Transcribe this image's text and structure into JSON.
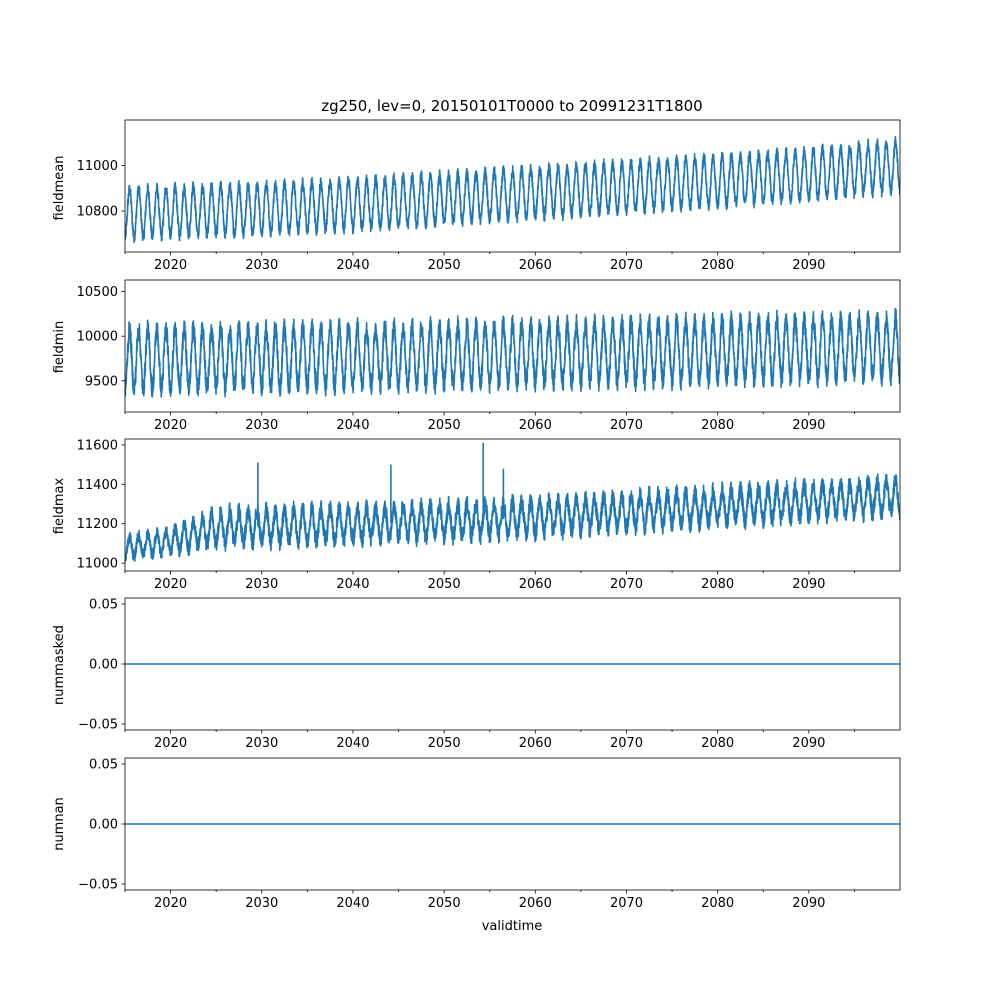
{
  "figure": {
    "title": "zg250, lev=0, 20150101T0000 to 20991231T1800",
    "xlabel": "validtime"
  },
  "colors": {
    "series": "#1f77b4",
    "axes": "#000000",
    "background": "#ffffff"
  },
  "chart_data": [
    {
      "type": "line",
      "ylabel": "fieldmean",
      "xlim": [
        "2015-01-01",
        "2099-12-31"
      ],
      "ylim": [
        10620,
        11200
      ],
      "x_tick_labels": [
        "2020",
        "2030",
        "2040",
        "2050",
        "2060",
        "2070",
        "2080",
        "2090"
      ],
      "y_ticks": [
        10800,
        11000
      ],
      "y_tick_labels": [
        "10800",
        "11000"
      ],
      "series": [
        {
          "x": [
            "2015-01-01",
            "2030-01-01",
            "2045-01-01",
            "2060-01-01",
            "2075-01-01",
            "2090-01-01",
            "2099-12-31"
          ],
          "center": [
            10790,
            10810,
            10840,
            10880,
            10920,
            10960,
            11000
          ],
          "seasonal_amplitude": [
            105,
            105,
            105,
            105,
            105,
            105,
            105
          ],
          "noise_amplitude": [
            25,
            25,
            25,
            25,
            25,
            25,
            25
          ]
        }
      ],
      "grid": false
    },
    {
      "type": "line",
      "ylabel": "fieldmin",
      "xlim": [
        "2015-01-01",
        "2099-12-31"
      ],
      "ylim": [
        9150,
        10630
      ],
      "x_tick_labels": [
        "2020",
        "2030",
        "2040",
        "2050",
        "2060",
        "2070",
        "2080",
        "2090"
      ],
      "y_ticks": [
        9500,
        10000,
        10500
      ],
      "y_tick_labels": [
        "9500",
        "10000",
        "10500"
      ],
      "series": [
        {
          "x": [
            "2015-01-01",
            "2030-01-01",
            "2045-01-01",
            "2060-01-01",
            "2075-01-01",
            "2090-01-01",
            "2099-12-31"
          ],
          "center": [
            9740,
            9760,
            9780,
            9800,
            9830,
            9860,
            9880
          ],
          "seasonal_amplitude": [
            330,
            330,
            330,
            330,
            330,
            330,
            330
          ],
          "noise_amplitude": [
            110,
            110,
            110,
            110,
            110,
            110,
            110
          ]
        }
      ],
      "grid": false
    },
    {
      "type": "line",
      "ylabel": "fieldmax",
      "xlim": [
        "2015-01-01",
        "2099-12-31"
      ],
      "ylim": [
        10960,
        11630
      ],
      "x_tick_labels": [
        "2020",
        "2030",
        "2040",
        "2050",
        "2060",
        "2070",
        "2080",
        "2090"
      ],
      "y_ticks": [
        11000,
        11200,
        11400,
        11600
      ],
      "y_tick_labels": [
        "11000",
        "11200",
        "11400",
        "11600"
      ],
      "series": [
        {
          "x": [
            "2015-01-01",
            "2020-01-01",
            "2025-01-01",
            "2040-01-01",
            "2055-01-01",
            "2070-01-01",
            "2085-01-01",
            "2099-12-31"
          ],
          "center": [
            11080,
            11110,
            11180,
            11200,
            11220,
            11260,
            11300,
            11340
          ],
          "seasonal_amplitude": [
            50,
            55,
            80,
            80,
            80,
            80,
            80,
            80
          ],
          "noise_amplitude": [
            30,
            30,
            45,
            45,
            45,
            45,
            45,
            45
          ]
        }
      ],
      "spikes": [
        {
          "x": "2029-08-01",
          "y": 11510
        },
        {
          "x": "2044-03-01",
          "y": 11500
        },
        {
          "x": "2054-04-15",
          "y": 11610
        },
        {
          "x": "2056-07-01",
          "y": 11480
        }
      ],
      "grid": false
    },
    {
      "type": "line",
      "ylabel": "nummasked",
      "xlim": [
        "2015-01-01",
        "2099-12-31"
      ],
      "ylim": [
        -0.055,
        0.055
      ],
      "x_tick_labels": [
        "2020",
        "2030",
        "2040",
        "2050",
        "2060",
        "2070",
        "2080",
        "2090"
      ],
      "y_ticks": [
        -0.05,
        0.0,
        0.05
      ],
      "y_tick_labels": [
        "−0.05",
        "0.00",
        "0.05"
      ],
      "series": [
        {
          "x": [
            "2015-01-01",
            "2099-12-31"
          ],
          "values": [
            0,
            0
          ]
        }
      ],
      "grid": false
    },
    {
      "type": "line",
      "ylabel": "numnan",
      "xlim": [
        "2015-01-01",
        "2099-12-31"
      ],
      "ylim": [
        -0.055,
        0.055
      ],
      "x_tick_labels": [
        "2020",
        "2030",
        "2040",
        "2050",
        "2060",
        "2070",
        "2080",
        "2090"
      ],
      "y_ticks": [
        -0.05,
        0.0,
        0.05
      ],
      "y_tick_labels": [
        "−0.05",
        "0.00",
        "0.05"
      ],
      "series": [
        {
          "x": [
            "2015-01-01",
            "2099-12-31"
          ],
          "values": [
            0,
            0
          ]
        }
      ],
      "grid": false
    }
  ]
}
